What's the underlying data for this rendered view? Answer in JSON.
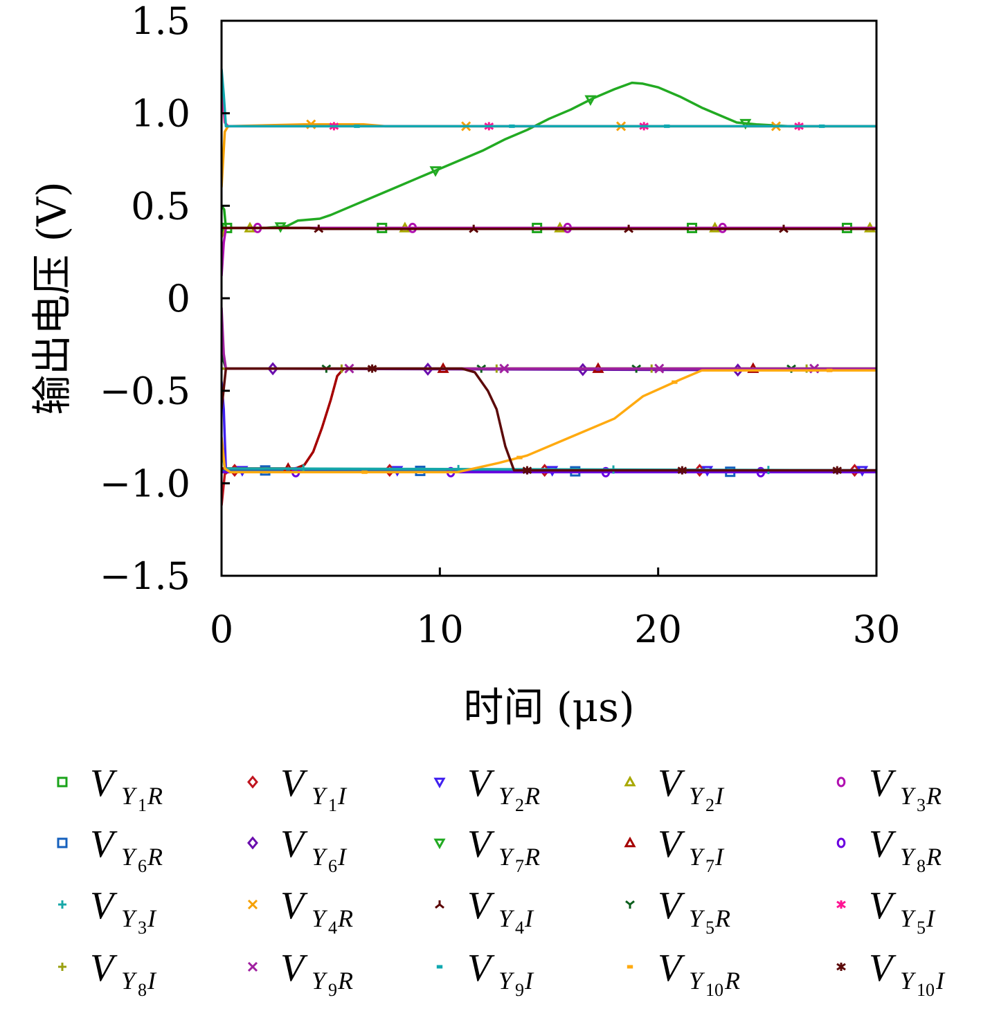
{
  "chart_data": {
    "type": "line",
    "title": "",
    "xlabel": "时间 (μs)",
    "ylabel": "输出电压 (V)",
    "xlim": [
      0,
      30
    ],
    "ylim": [
      -1.5,
      1.5
    ],
    "x_ticks": [
      0,
      10,
      20,
      30
    ],
    "x_tick_labels": [
      "0",
      "10",
      "20",
      "30"
    ],
    "y_ticks": [
      -1.5,
      -1.0,
      -0.5,
      0,
      0.5,
      1.0,
      1.5
    ],
    "y_tick_labels": [
      "−1.5",
      "−1.0",
      "−0.5",
      "0",
      "0.5",
      "1.0",
      "1.5"
    ],
    "grid": false,
    "legend_position": "bottom",
    "series": [
      {
        "name": "V",
        "sub": "Y",
        "subsub": "1",
        "tail": "R",
        "color": "#1aa31a",
        "marker": "square",
        "points": [
          [
            0,
            0.5
          ],
          [
            0.12,
            0.48
          ],
          [
            0.2,
            0.38
          ],
          [
            1,
            0.38
          ],
          [
            30,
            0.38
          ]
        ]
      },
      {
        "name": "V",
        "sub": "Y",
        "subsub": "1",
        "tail": "I",
        "color": "#c0141e",
        "marker": "diamond",
        "points": [
          [
            0,
            -1.12
          ],
          [
            0.15,
            -0.95
          ],
          [
            0.4,
            -0.93
          ],
          [
            30,
            -0.93
          ]
        ]
      },
      {
        "name": "V",
        "sub": "Y",
        "subsub": "2",
        "tail": "R",
        "color": "#4020f0",
        "marker": "tri-down",
        "points": [
          [
            0,
            -0.45
          ],
          [
            0.1,
            -0.6
          ],
          [
            0.2,
            -0.93
          ],
          [
            30,
            -0.93
          ]
        ]
      },
      {
        "name": "V",
        "sub": "Y",
        "subsub": "2",
        "tail": "I",
        "color": "#a8a800",
        "marker": "tri-up",
        "points": [
          [
            0,
            0.33
          ],
          [
            0.2,
            0.38
          ],
          [
            30,
            0.38
          ]
        ]
      },
      {
        "name": "V",
        "sub": "Y",
        "subsub": "3",
        "tail": "R",
        "color": "#b010b0",
        "marker": "circle",
        "points": [
          [
            0,
            0.12
          ],
          [
            0.1,
            0.3
          ],
          [
            0.2,
            0.38
          ],
          [
            30,
            0.38
          ]
        ]
      },
      {
        "name": "V",
        "sub": "Y",
        "subsub": "6",
        "tail": "R",
        "color": "#1560bd",
        "marker": "square",
        "points": [
          [
            0,
            -0.93
          ],
          [
            30,
            -0.94
          ]
        ]
      },
      {
        "name": "V",
        "sub": "Y",
        "subsub": "6",
        "tail": "I",
        "color": "#6a0dad",
        "marker": "diamond",
        "points": [
          [
            0,
            -0.38
          ],
          [
            30,
            -0.39
          ]
        ]
      },
      {
        "name": "V",
        "sub": "Y",
        "subsub": "7",
        "tail": "R",
        "color": "#22aa22",
        "marker": "tri-down",
        "points": [
          [
            0,
            0.38
          ],
          [
            2,
            0.38
          ],
          [
            3,
            0.39
          ],
          [
            3.5,
            0.42
          ],
          [
            4.5,
            0.43
          ],
          [
            5,
            0.45
          ],
          [
            6,
            0.5
          ],
          [
            7,
            0.55
          ],
          [
            8,
            0.6
          ],
          [
            9,
            0.65
          ],
          [
            10,
            0.7
          ],
          [
            11,
            0.75
          ],
          [
            12,
            0.8
          ],
          [
            13,
            0.86
          ],
          [
            14,
            0.91
          ],
          [
            15,
            0.97
          ],
          [
            16,
            1.02
          ],
          [
            17,
            1.08
          ],
          [
            18,
            1.13
          ],
          [
            18.8,
            1.165
          ],
          [
            19.3,
            1.16
          ],
          [
            20,
            1.14
          ],
          [
            21,
            1.09
          ],
          [
            22,
            1.03
          ],
          [
            23,
            0.98
          ],
          [
            23.6,
            0.95
          ],
          [
            24.5,
            0.94
          ],
          [
            26,
            0.93
          ],
          [
            30,
            0.93
          ]
        ]
      },
      {
        "name": "V",
        "sub": "Y",
        "subsub": "7",
        "tail": "I",
        "color": "#a50000",
        "marker": "tri-up",
        "points": [
          [
            0,
            -0.92
          ],
          [
            3.4,
            -0.92
          ],
          [
            3.8,
            -0.9
          ],
          [
            4.2,
            -0.83
          ],
          [
            4.6,
            -0.7
          ],
          [
            5,
            -0.55
          ],
          [
            5.3,
            -0.42
          ],
          [
            5.6,
            -0.38
          ],
          [
            30,
            -0.38
          ]
        ]
      },
      {
        "name": "V",
        "sub": "Y",
        "subsub": "8",
        "tail": "R",
        "color": "#6a00e0",
        "marker": "circle",
        "points": [
          [
            0,
            -0.94
          ],
          [
            30,
            -0.94
          ]
        ]
      },
      {
        "name": "V",
        "sub": "Y",
        "subsub": "3",
        "tail": "I",
        "color": "#17a8a8",
        "marker": "plus",
        "points": [
          [
            0,
            -0.8
          ],
          [
            0.15,
            -0.92
          ],
          [
            30,
            -0.93
          ]
        ]
      },
      {
        "name": "V",
        "sub": "Y",
        "subsub": "4",
        "tail": "R",
        "color": "#f5a000",
        "marker": "x",
        "points": [
          [
            0,
            0.6
          ],
          [
            0.15,
            0.9
          ],
          [
            0.3,
            0.93
          ],
          [
            3.8,
            0.94
          ],
          [
            6.5,
            0.94
          ],
          [
            7.5,
            0.93
          ],
          [
            30,
            0.93
          ]
        ]
      },
      {
        "name": "V",
        "sub": "Y",
        "subsub": "4",
        "tail": "I",
        "color": "#5a0000",
        "marker": "tri-y",
        "points": [
          [
            0,
            0.38
          ],
          [
            4,
            0.38
          ],
          [
            4.5,
            0.375
          ],
          [
            30,
            0.375
          ]
        ]
      },
      {
        "name": "V",
        "sub": "Y",
        "subsub": "5",
        "tail": "R",
        "color": "#0b5e1c",
        "marker": "y",
        "points": [
          [
            0,
            -0.3
          ],
          [
            0.2,
            -0.38
          ],
          [
            30,
            -0.38
          ]
        ]
      },
      {
        "name": "V",
        "sub": "Y",
        "subsub": "5",
        "tail": "I",
        "color": "#ff1493",
        "marker": "asterisk",
        "points": [
          [
            0,
            1.15
          ],
          [
            0.15,
            0.95
          ],
          [
            0.3,
            0.93
          ],
          [
            30,
            0.93
          ]
        ]
      },
      {
        "name": "V",
        "sub": "Y",
        "subsub": "8",
        "tail": "I",
        "color": "#9aa010",
        "marker": "plus",
        "points": [
          [
            0,
            -0.38
          ],
          [
            30,
            -0.38
          ]
        ]
      },
      {
        "name": "V",
        "sub": "Y",
        "subsub": "9",
        "tail": "R",
        "color": "#a020a0",
        "marker": "x",
        "points": [
          [
            0,
            -0.05
          ],
          [
            0.1,
            -0.3
          ],
          [
            0.2,
            -0.38
          ],
          [
            30,
            -0.38
          ]
        ]
      },
      {
        "name": "V",
        "sub": "Y",
        "subsub": "9",
        "tail": "I",
        "color": "#10a8b0",
        "marker": "dash",
        "points": [
          [
            0,
            1.24
          ],
          [
            0.1,
            1.1
          ],
          [
            0.2,
            0.93
          ],
          [
            30,
            0.93
          ]
        ]
      },
      {
        "name": "V",
        "sub": "Y",
        "subsub": "10",
        "tail": "R",
        "color": "#ffaa10",
        "marker": "dash",
        "points": [
          [
            0,
            -0.75
          ],
          [
            0.15,
            -0.92
          ],
          [
            0.4,
            -0.94
          ],
          [
            10.8,
            -0.94
          ],
          [
            12.7,
            -0.89
          ],
          [
            14,
            -0.85
          ],
          [
            16,
            -0.75
          ],
          [
            18,
            -0.65
          ],
          [
            19.3,
            -0.53
          ],
          [
            21,
            -0.44
          ],
          [
            22,
            -0.39
          ],
          [
            30,
            -0.39
          ]
        ]
      },
      {
        "name": "V",
        "sub": "Y",
        "subsub": "10",
        "tail": "I",
        "color": "#5c0a0a",
        "marker": "asterisk",
        "points": [
          [
            0,
            -0.6
          ],
          [
            0.2,
            -0.38
          ],
          [
            11,
            -0.38
          ],
          [
            11.6,
            -0.4
          ],
          [
            12.2,
            -0.5
          ],
          [
            12.6,
            -0.6
          ],
          [
            13,
            -0.8
          ],
          [
            13.4,
            -0.93
          ],
          [
            30,
            -0.93
          ]
        ]
      }
    ]
  }
}
